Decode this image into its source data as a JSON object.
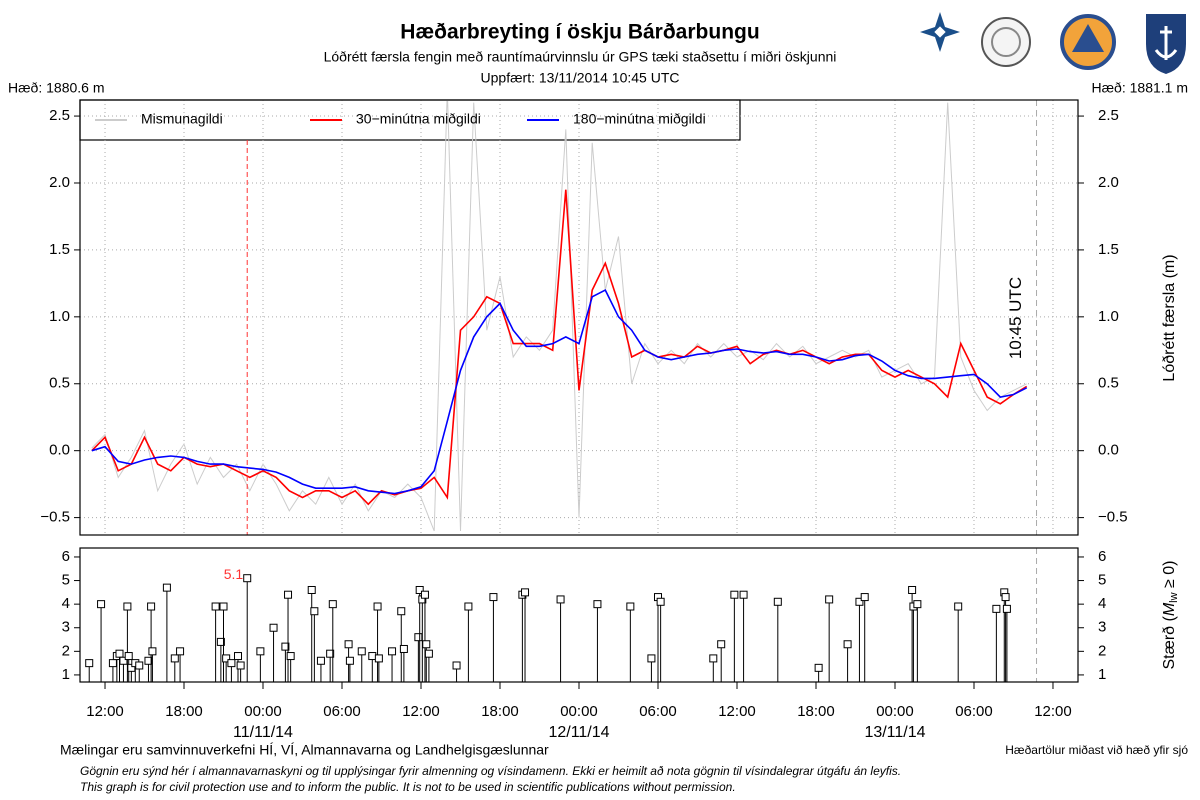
{
  "header": {
    "title": "Hæðarbreyting í öskju Bárðarbungu",
    "subtitle": "Lóðrétt færsla fengin með rauntímaúrvinnslu úr GPS tæki staðsettu í miðri öskjunni",
    "updated": "Uppfært: 13/11/2014 10:45 UTC",
    "left_height": "Hæð: 1880.6 m",
    "right_height": "Hæð: 1881.1 m"
  },
  "footer": {
    "credits": "Mælingar eru samvinnuverkefni HÍ, VÍ, Almannavarna og Landhelgisgæslunnar",
    "datum": "Hæðartölur miðast við hæð yfir sjó",
    "disclaimer_is": "Gögnin eru sýnd hér í almannavarnaskyni og til upplýsingar fyrir almenning og vísindamenn. Ekki er heimilt að nota gögnin til vísindalegrar útgáfu án leyfis.",
    "disclaimer_en": "This graph is for civil protection use and to inform the public. It is not to be used in scientific publications without permission."
  },
  "chart_data": [
    {
      "type": "line",
      "ylabel": "Lóðrétt færsla (m)",
      "legend": "top-left",
      "grid": true,
      "now": "2014-11-13T10:45",
      "now_label": "10:45 UTC",
      "xlim": [
        "2014-11-10T10:06",
        "2014-11-13T13:54"
      ],
      "ylim": [
        -0.63,
        2.62
      ],
      "yticks": [
        {
          "value": -0.5,
          "label": "−0.5"
        },
        {
          "value": 0,
          "label": "0.0"
        },
        0.5,
        {
          "value": 1,
          "label": "1.0"
        },
        1.5,
        {
          "value": 2,
          "label": "2.0"
        },
        2.5
      ],
      "x": [
        "2014-11-10T11:00",
        "2014-11-10T12:00",
        "2014-11-10T13:00",
        "2014-11-10T14:00",
        "2014-11-10T15:00",
        "2014-11-10T16:00",
        "2014-11-10T17:00",
        "2014-11-10T18:00",
        "2014-11-10T19:00",
        "2014-11-10T20:00",
        "2014-11-10T21:00",
        "2014-11-10T22:00",
        "2014-11-10T23:00",
        "2014-11-11T00:00",
        "2014-11-11T01:00",
        "2014-11-11T02:00",
        "2014-11-11T03:00",
        "2014-11-11T04:00",
        "2014-11-11T05:00",
        "2014-11-11T06:00",
        "2014-11-11T07:00",
        "2014-11-11T08:00",
        "2014-11-11T09:00",
        "2014-11-11T10:00",
        "2014-11-11T11:00",
        "2014-11-11T12:00",
        "2014-11-11T13:00",
        "2014-11-11T14:00",
        "2014-11-11T15:00",
        "2014-11-11T16:00",
        "2014-11-11T17:00",
        "2014-11-11T18:00",
        "2014-11-11T19:00",
        "2014-11-11T20:00",
        "2014-11-11T21:00",
        "2014-11-11T22:00",
        "2014-11-11T23:00",
        "2014-11-12T00:00",
        "2014-11-12T01:00",
        "2014-11-12T02:00",
        "2014-11-12T03:00",
        "2014-11-12T04:00",
        "2014-11-12T05:00",
        "2014-11-12T06:00",
        "2014-11-12T07:00",
        "2014-11-12T08:00",
        "2014-11-12T09:00",
        "2014-11-12T10:00",
        "2014-11-12T11:00",
        "2014-11-12T12:00",
        "2014-11-12T13:00",
        "2014-11-12T14:00",
        "2014-11-12T15:00",
        "2014-11-12T16:00",
        "2014-11-12T17:00",
        "2014-11-12T18:00",
        "2014-11-12T19:00",
        "2014-11-12T20:00",
        "2014-11-12T21:00",
        "2014-11-12T22:00",
        "2014-11-12T23:00",
        "2014-11-13T00:00",
        "2014-11-13T01:00",
        "2014-11-13T02:00",
        "2014-11-13T03:00",
        "2014-11-13T04:00",
        "2014-11-13T05:00",
        "2014-11-13T06:00",
        "2014-11-13T07:00",
        "2014-11-13T08:00",
        "2014-11-13T09:00",
        "2014-11-13T10:00"
      ],
      "series": [
        {
          "name": "Mismunagildi",
          "color": "#cccccc",
          "values": [
            0.02,
            0.12,
            -0.2,
            -0.05,
            0.15,
            -0.3,
            -0.1,
            0.05,
            -0.25,
            -0.05,
            -0.2,
            -0.1,
            -0.3,
            -0.1,
            -0.25,
            -0.45,
            -0.3,
            -0.4,
            -0.2,
            -0.4,
            -0.25,
            -0.45,
            -0.3,
            -0.35,
            -0.25,
            -0.35,
            -0.6,
            2.7,
            -0.6,
            2.6,
            0.9,
            1.3,
            0.7,
            0.85,
            0.75,
            0.9,
            2.4,
            -0.5,
            2.3,
            1.2,
            1.6,
            0.5,
            0.8,
            0.65,
            0.75,
            0.65,
            0.8,
            0.7,
            0.8,
            0.7,
            0.75,
            0.68,
            0.8,
            0.7,
            0.78,
            0.65,
            0.7,
            0.75,
            0.7,
            0.75,
            0.55,
            0.6,
            0.65,
            0.5,
            0.55,
            2.6,
            0.7,
            0.45,
            0.3,
            0.4,
            0.45,
            0.5
          ]
        },
        {
          "name": "30−minútna miðgildi",
          "color": "#ff0000",
          "values": [
            0.0,
            0.1,
            -0.15,
            -0.1,
            0.1,
            -0.1,
            -0.15,
            -0.05,
            -0.1,
            -0.12,
            -0.1,
            -0.15,
            -0.2,
            -0.15,
            -0.2,
            -0.3,
            -0.35,
            -0.3,
            -0.3,
            -0.35,
            -0.3,
            -0.4,
            -0.3,
            -0.33,
            -0.3,
            -0.28,
            -0.2,
            -0.35,
            0.9,
            1.0,
            1.15,
            1.1,
            0.8,
            0.8,
            0.8,
            0.75,
            1.95,
            0.45,
            1.2,
            1.4,
            1.1,
            0.7,
            0.75,
            0.7,
            0.72,
            0.7,
            0.78,
            0.73,
            0.75,
            0.78,
            0.65,
            0.72,
            0.75,
            0.72,
            0.75,
            0.7,
            0.65,
            0.7,
            0.72,
            0.72,
            0.6,
            0.55,
            0.6,
            0.55,
            0.5,
            0.4,
            0.8,
            0.6,
            0.4,
            0.35,
            0.42,
            0.48
          ]
        },
        {
          "name": "180−minútna miðgildi",
          "color": "#0000ff",
          "values": [
            0.0,
            0.03,
            -0.08,
            -0.1,
            -0.07,
            -0.05,
            -0.04,
            -0.05,
            -0.08,
            -0.1,
            -0.1,
            -0.12,
            -0.13,
            -0.14,
            -0.16,
            -0.2,
            -0.25,
            -0.28,
            -0.28,
            -0.28,
            -0.27,
            -0.3,
            -0.31,
            -0.32,
            -0.3,
            -0.27,
            -0.15,
            0.22,
            0.6,
            0.85,
            1.0,
            1.1,
            0.9,
            0.78,
            0.78,
            0.8,
            0.85,
            0.8,
            1.15,
            1.2,
            1.0,
            0.9,
            0.75,
            0.7,
            0.68,
            0.7,
            0.72,
            0.73,
            0.75,
            0.76,
            0.74,
            0.73,
            0.74,
            0.72,
            0.72,
            0.7,
            0.67,
            0.68,
            0.71,
            0.72,
            0.67,
            0.6,
            0.56,
            0.54,
            0.54,
            0.55,
            0.56,
            0.57,
            0.5,
            0.4,
            0.42,
            0.47
          ]
        }
      ]
    },
    {
      "type": "scatter",
      "ylabel_prefix": "Stærð (",
      "ylabel_symbol": "M",
      "ylabel_sub": "lw",
      "ylabel_suffix": " ≥ 0)",
      "color": "#000000",
      "xlim": [
        "2014-11-10T10:06",
        "2014-11-13T13:54"
      ],
      "ylim": [
        0.7,
        6.38
      ],
      "yticks": [
        1,
        2,
        3,
        4,
        5,
        6
      ],
      "xticks": [
        {
          "value": "2014-11-10T12:00",
          "label": "12:00"
        },
        {
          "value": "2014-11-10T18:00",
          "label": "18:00"
        },
        {
          "value": "2014-11-11T00:00",
          "label": "00:00"
        },
        {
          "value": "2014-11-11T06:00",
          "label": "06:00"
        },
        {
          "value": "2014-11-11T12:00",
          "label": "12:00"
        },
        {
          "value": "2014-11-11T18:00",
          "label": "18:00"
        },
        {
          "value": "2014-11-12T00:00",
          "label": "00:00"
        },
        {
          "value": "2014-11-12T06:00",
          "label": "06:00"
        },
        {
          "value": "2014-11-12T12:00",
          "label": "12:00"
        },
        {
          "value": "2014-11-12T18:00",
          "label": "18:00"
        },
        {
          "value": "2014-11-13T00:00",
          "label": "00:00"
        },
        {
          "value": "2014-11-13T06:00",
          "label": "06:00"
        },
        {
          "value": "2014-11-13T12:00",
          "label": "12:00"
        }
      ],
      "xdates": [
        {
          "value": "2014-11-11T00:00",
          "label": "11/11/14"
        },
        {
          "value": "2014-11-12T00:00",
          "label": "12/11/14"
        },
        {
          "value": "2014-11-13T00:00",
          "label": "13/11/14"
        }
      ],
      "annotations": [
        {
          "text": "5.1",
          "x": "2014-11-10T22:48",
          "y": 5.1,
          "color": "#ff3333"
        }
      ],
      "x": [
        "2014-11-10T10:48",
        "2014-11-10T11:42",
        "2014-11-10T12:36",
        "2014-11-10T12:54",
        "2014-11-10T13:06",
        "2014-11-10T13:24",
        "2014-11-10T13:42",
        "2014-11-10T13:48",
        "2014-11-10T14:00",
        "2014-11-10T14:18",
        "2014-11-10T14:36",
        "2014-11-10T15:18",
        "2014-11-10T15:30",
        "2014-11-10T15:36",
        "2014-11-10T16:42",
        "2014-11-10T17:18",
        "2014-11-10T17:42",
        "2014-11-10T20:24",
        "2014-11-10T20:48",
        "2014-11-10T21:00",
        "2014-11-10T21:12",
        "2014-11-10T21:36",
        "2014-11-10T22:06",
        "2014-11-10T22:18",
        "2014-11-10T22:48",
        "2014-11-10T23:48",
        "2014-11-11T00:48",
        "2014-11-11T01:42",
        "2014-11-11T01:54",
        "2014-11-11T02:06",
        "2014-11-11T03:42",
        "2014-11-11T03:54",
        "2014-11-11T04:24",
        "2014-11-11T05:06",
        "2014-11-11T05:18",
        "2014-11-11T06:30",
        "2014-11-11T06:36",
        "2014-11-11T07:30",
        "2014-11-11T08:18",
        "2014-11-11T08:42",
        "2014-11-11T08:48",
        "2014-11-11T09:48",
        "2014-11-11T10:30",
        "2014-11-11T10:42",
        "2014-11-11T11:48",
        "2014-11-11T11:54",
        "2014-11-11T12:06",
        "2014-11-11T12:18",
        "2014-11-11T12:24",
        "2014-11-11T12:36",
        "2014-11-11T14:42",
        "2014-11-11T15:36",
        "2014-11-11T17:30",
        "2014-11-11T19:42",
        "2014-11-11T19:54",
        "2014-11-11T22:36",
        "2014-11-12T01:24",
        "2014-11-12T03:54",
        "2014-11-12T05:30",
        "2014-11-12T06:00",
        "2014-11-12T06:12",
        "2014-11-12T10:12",
        "2014-11-12T10:48",
        "2014-11-12T11:48",
        "2014-11-12T12:30",
        "2014-11-12T15:06",
        "2014-11-12T18:12",
        "2014-11-12T19:00",
        "2014-11-12T20:24",
        "2014-11-12T21:18",
        "2014-11-12T21:42",
        "2014-11-13T01:18",
        "2014-11-13T01:24",
        "2014-11-13T01:42",
        "2014-11-13T04:48",
        "2014-11-13T07:42",
        "2014-11-13T08:18",
        "2014-11-13T08:24",
        "2014-11-13T08:30"
      ],
      "values": [
        1.5,
        4.0,
        1.5,
        1.8,
        1.9,
        1.6,
        3.9,
        1.8,
        1.3,
        1.5,
        1.4,
        1.6,
        3.9,
        2.0,
        4.7,
        1.7,
        2.0,
        3.9,
        2.4,
        3.9,
        1.7,
        1.5,
        1.8,
        1.4,
        5.1,
        2.0,
        3.0,
        2.2,
        4.4,
        1.8,
        4.6,
        3.7,
        1.6,
        1.9,
        4.0,
        2.3,
        1.6,
        2.0,
        1.8,
        3.9,
        1.7,
        2.0,
        3.7,
        2.1,
        2.6,
        4.6,
        4.2,
        4.4,
        2.3,
        1.9,
        1.4,
        3.9,
        4.3,
        4.4,
        4.5,
        4.2,
        4.0,
        3.9,
        1.7,
        4.3,
        4.1,
        1.7,
        2.3,
        4.4,
        4.4,
        4.1,
        1.3,
        4.2,
        2.3,
        4.1,
        4.3,
        4.6,
        3.9,
        4.0,
        3.9,
        3.8,
        4.5,
        4.3,
        3.8
      ]
    }
  ]
}
